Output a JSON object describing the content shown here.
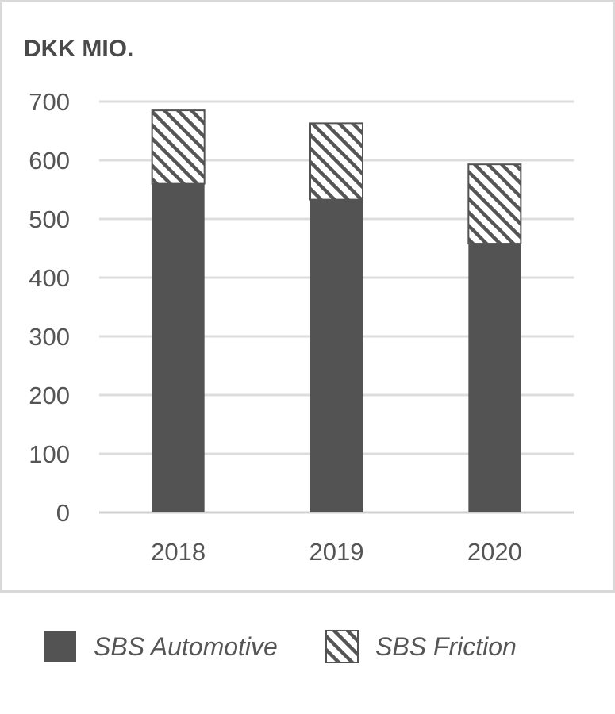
{
  "chart_data": {
    "type": "bar",
    "stacked": true,
    "title": "",
    "unit_label": "DKK MIO.",
    "xlabel": "",
    "ylabel": "",
    "categories": [
      "2018",
      "2019",
      "2020"
    ],
    "series": [
      {
        "name": "SBS Automotive",
        "values": [
          560,
          533,
          458
        ],
        "color": "#535353",
        "pattern": "solid"
      },
      {
        "name": "SBS Friction",
        "values": [
          125,
          130,
          135
        ],
        "color": "#535353",
        "pattern": "diagonal-hatch"
      }
    ],
    "ylim": [
      0,
      700
    ],
    "yticks": [
      0,
      100,
      200,
      300,
      400,
      500,
      600,
      700
    ],
    "grid": true,
    "legend_position": "bottom"
  }
}
